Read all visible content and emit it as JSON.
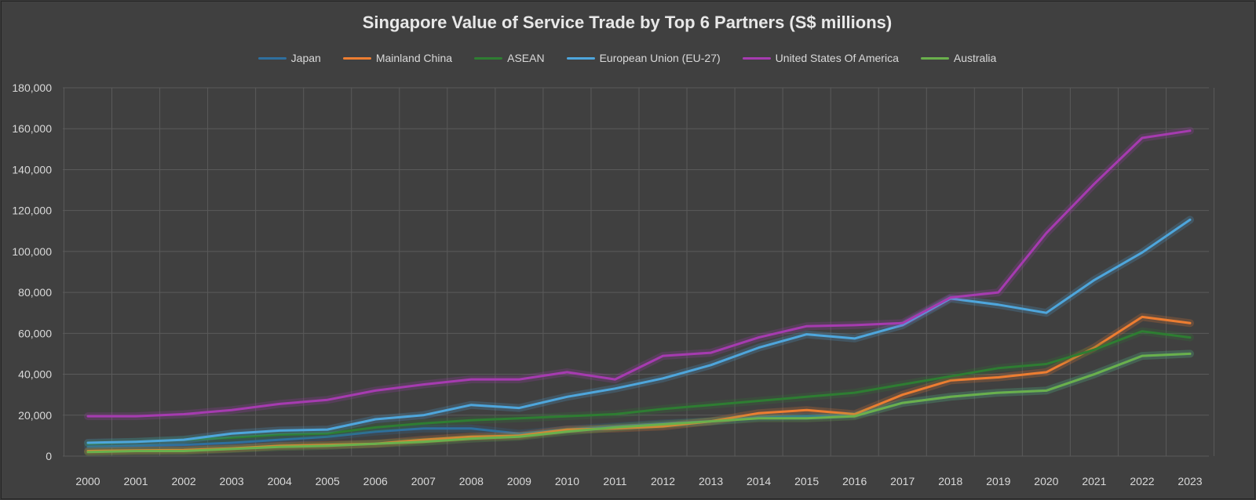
{
  "chart_data": {
    "type": "line",
    "title": "Singapore Value of Service Trade by Top 6 Partners (S$ millions)",
    "xlabel": "",
    "ylabel": "",
    "ylim": [
      0,
      180000
    ],
    "yticks": [
      "0",
      "20,000",
      "40,000",
      "60,000",
      "80,000",
      "100,000",
      "120,000",
      "140,000",
      "160,000",
      "180,000"
    ],
    "grid": true,
    "legend_position": "top",
    "categories": [
      "2000",
      "2001",
      "2002",
      "2003",
      "2004",
      "2005",
      "2006",
      "2007",
      "2008",
      "2009",
      "2010",
      "2011",
      "2012",
      "2013",
      "2014",
      "2015",
      "2016",
      "2017",
      "2018",
      "2019",
      "2020",
      "2021",
      "2022",
      "2023"
    ],
    "series": [
      {
        "name": "Japan",
        "color": "#2e6f9e",
        "values": [
          4500,
          5000,
          5500,
          6500,
          8000,
          9500,
          12000,
          13500,
          13500,
          11000,
          13000,
          14500,
          16000,
          17000,
          19000,
          19500,
          20000,
          26000,
          29000,
          31000,
          32000,
          40000,
          49000,
          50000
        ]
      },
      {
        "name": "Mainland China",
        "color": "#ed7d31",
        "values": [
          2500,
          2800,
          3000,
          3800,
          5000,
          5500,
          6000,
          8000,
          9500,
          10000,
          13000,
          13500,
          14500,
          17000,
          21000,
          22500,
          20500,
          30000,
          37000,
          38500,
          41000,
          53000,
          68000,
          65000
        ]
      },
      {
        "name": "ASEAN",
        "color": "#2e7d32",
        "values": [
          6000,
          7000,
          8000,
          9000,
          10500,
          11000,
          14000,
          16000,
          17500,
          18500,
          19500,
          20500,
          23000,
          25000,
          27000,
          29000,
          31000,
          35000,
          39000,
          43000,
          45000,
          52000,
          61000,
          58000
        ]
      },
      {
        "name": "European Union (EU-27)",
        "color": "#4ea6dc",
        "values": [
          6500,
          7000,
          8000,
          11000,
          12500,
          13000,
          18000,
          20000,
          25000,
          23500,
          29000,
          33000,
          38000,
          44500,
          53000,
          59500,
          57500,
          64000,
          77000,
          74000,
          70000,
          86000,
          99500,
          115500
        ]
      },
      {
        "name": "United States Of America",
        "color": "#a63bb0",
        "values": [
          19500,
          19500,
          20500,
          22500,
          25500,
          27500,
          32000,
          35000,
          37500,
          37500,
          41000,
          37500,
          49000,
          50500,
          58000,
          63500,
          64000,
          65000,
          77500,
          80000,
          109000,
          133000,
          155500,
          159000
        ]
      },
      {
        "name": "Australia",
        "color": "#6ab04c",
        "values": [
          2000,
          2500,
          2500,
          3500,
          4500,
          5000,
          6000,
          7000,
          8500,
          9500,
          12000,
          14000,
          15500,
          17000,
          18500,
          18500,
          19500,
          26000,
          29000,
          31000,
          32000,
          40000,
          49000,
          50000
        ]
      }
    ]
  }
}
